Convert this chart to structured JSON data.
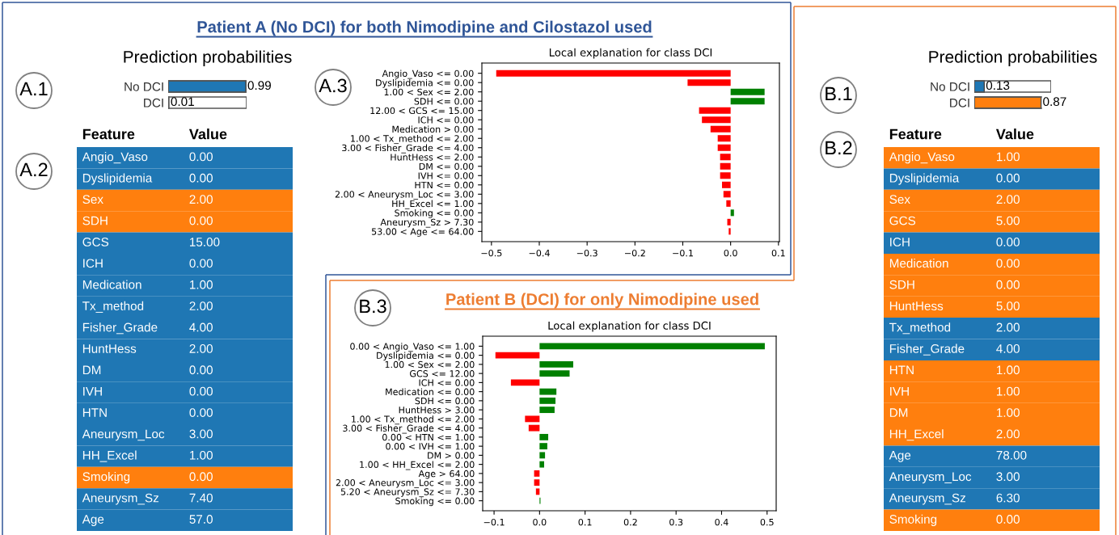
{
  "chart_data": [
    {
      "type": "bar",
      "orientation": "horizontal",
      "title": "Prediction probabilities",
      "annotations": [
        "A.1"
      ],
      "categories": [
        "No DCI",
        "DCI"
      ],
      "values": [
        0.99,
        0.01
      ],
      "colors": [
        "#1f77b4",
        "#ff7f0e"
      ],
      "xlim": [
        0,
        1
      ],
      "data_labels": true,
      "tick_labels": "y"
    },
    {
      "type": "other",
      "annotations": [
        "A.2",
        "Feature",
        "Value"
      ],
      "categories": [
        "Angio_Vaso",
        "Dyslipidemia",
        "Sex",
        "SDH",
        "GCS",
        "ICH",
        "Medication",
        "Tx_method",
        "Fisher_Grade",
        "HuntHess",
        "DM",
        "IVH",
        "HTN",
        "Aneurysm_Loc",
        "HH_Excel",
        "Smoking",
        "Aneurysm_Sz",
        "Age"
      ],
      "value_labels": [
        "0.00",
        "0.00",
        "2.00",
        "0.00",
        "15.00",
        "0.00",
        "1.00",
        "2.00",
        "4.00",
        "2.00",
        "0.00",
        "0.00",
        "0.00",
        "3.00",
        "1.00",
        "0.00",
        "7.40",
        "57.0"
      ],
      "colors": [
        "#1f77b4",
        "#1f77b4",
        "#ff7f0e",
        "#ff7f0e",
        "#1f77b4",
        "#1f77b4",
        "#1f77b4",
        "#1f77b4",
        "#1f77b4",
        "#1f77b4",
        "#1f77b4",
        "#1f77b4",
        "#1f77b4",
        "#1f77b4",
        "#1f77b4",
        "#ff7f0e",
        "#1f77b4",
        "#1f77b4"
      ]
    },
    {
      "type": "bar",
      "orientation": "horizontal",
      "title": "Local explanation for class DCI",
      "subtitle": "Patient A (No DCI) for both Nimodipine and Cilostazol used",
      "annotations": [
        "A.3"
      ],
      "categories": [
        "Angio_Vaso <= 0.00",
        "Dyslipidemia <= 0.00",
        "1.00 < Sex <= 2.00",
        "SDH <= 0.00",
        "12.00 < GCS <= 15.00",
        "ICH <= 0.00",
        "Medication > 0.00",
        "1.00 < Tx_method <= 2.00",
        "3.00 < Fisher_Grade <= 4.00",
        "HuntHess <= 2.00",
        "DM <= 0.00",
        "IVH <= 0.00",
        "HTN <= 0.00",
        "2.00 < Aneurysm_Loc <= 3.00",
        "HH_Excel <= 1.00",
        "Smoking <= 0.00",
        "Aneurysm_Sz > 7.30",
        "53.00 < Age <= 64.00"
      ],
      "values": [
        -0.49,
        -0.09,
        0.071,
        0.071,
        -0.066,
        -0.06,
        -0.042,
        -0.027,
        -0.027,
        -0.022,
        -0.022,
        -0.022,
        -0.018,
        -0.015,
        -0.009,
        0.007,
        -0.007,
        -0.004
      ],
      "colors": [
        "#ff0000",
        "#ff0000",
        "#008000",
        "#008000",
        "#ff0000",
        "#ff0000",
        "#ff0000",
        "#ff0000",
        "#ff0000",
        "#ff0000",
        "#ff0000",
        "#ff0000",
        "#ff0000",
        "#ff0000",
        "#ff0000",
        "#008000",
        "#ff0000",
        "#ff0000"
      ],
      "xlim": [
        -0.52,
        0.102
      ],
      "xticks": [
        {
          "value": -0.5,
          "label": "−0.5"
        },
        {
          "value": -0.4,
          "label": "−0.4"
        },
        {
          "value": -0.3,
          "label": "−0.3"
        },
        {
          "value": -0.2,
          "label": "−0.2"
        },
        {
          "value": -0.1,
          "label": "−0.1"
        },
        {
          "value": 0,
          "label": "0.0"
        },
        0.1
      ]
    },
    {
      "type": "bar",
      "orientation": "horizontal",
      "title": "Local explanation for class DCI",
      "subtitle": "Patient B (DCI) for only Nimodipine used",
      "annotations": [
        "B.3"
      ],
      "categories": [
        "0.00 < Angio_Vaso <= 1.00",
        "Dyslipidemia <= 0.00",
        "1.00 < Sex <= 2.00",
        "GCS <= 12.00",
        "ICH <= 0.00",
        "Medication <= 0.00",
        "SDH <= 0.00",
        "HuntHess > 3.00",
        "1.00 < Tx_method <= 2.00",
        "3.00 < Fisher_Grade <= 4.00",
        "0.00 < HTN <= 1.00",
        "0.00 < IVH <= 1.00",
        "DM > 0.00",
        "1.00 < HH_Excel <= 2.00",
        "Age > 64.00",
        "2.00 < Aneurysm_Loc <= 3.00",
        "5.20 < Aneurysm_Sz <= 7.30",
        "Smoking <= 0.00"
      ],
      "values": [
        0.495,
        -0.097,
        0.074,
        0.066,
        -0.063,
        0.037,
        0.035,
        0.033,
        -0.032,
        -0.024,
        0.019,
        0.017,
        0.012,
        0.01,
        -0.012,
        -0.012,
        -0.008,
        0.002
      ],
      "colors": [
        "#008000",
        "#ff0000",
        "#008000",
        "#008000",
        "#ff0000",
        "#008000",
        "#008000",
        "#008000",
        "#ff0000",
        "#ff0000",
        "#008000",
        "#008000",
        "#008000",
        "#008000",
        "#ff0000",
        "#ff0000",
        "#ff0000",
        "#008000"
      ],
      "xlim": [
        -0.125,
        0.52
      ],
      "xticks": [
        {
          "value": -0.1,
          "label": "−0.1"
        },
        {
          "value": 0,
          "label": "0.0"
        },
        0.1,
        0.2,
        0.3,
        0.4,
        0.5
      ]
    },
    {
      "type": "bar",
      "orientation": "horizontal",
      "title": "Prediction probabilities",
      "annotations": [
        "B.1"
      ],
      "categories": [
        "No DCI",
        "DCI"
      ],
      "values": [
        0.13,
        0.87
      ],
      "colors": [
        "#1f77b4",
        "#ff7f0e"
      ],
      "xlim": [
        0,
        1
      ],
      "data_labels": true,
      "tick_labels": "y"
    },
    {
      "type": "other",
      "annotations": [
        "B.2",
        "Feature",
        "Value"
      ],
      "categories": [
        "Angio_Vaso",
        "Dyslipidemia",
        "Sex",
        "GCS",
        "ICH",
        "Medication",
        "SDH",
        "HuntHess",
        "Tx_method",
        "Fisher_Grade",
        "HTN",
        "IVH",
        "DM",
        "HH_Excel",
        "Age",
        "Aneurysm_Loc",
        "Aneurysm_Sz",
        "Smoking"
      ],
      "value_labels": [
        "1.00",
        "0.00",
        "2.00",
        "5.00",
        "0.00",
        "0.00",
        "0.00",
        "5.00",
        "2.00",
        "4.00",
        "1.00",
        "1.00",
        "1.00",
        "2.00",
        "78.00",
        "3.00",
        "6.30",
        "0.00"
      ],
      "colors": [
        "#ff7f0e",
        "#1f77b4",
        "#ff7f0e",
        "#ff7f0e",
        "#1f77b4",
        "#ff7f0e",
        "#ff7f0e",
        "#ff7f0e",
        "#1f77b4",
        "#1f77b4",
        "#ff7f0e",
        "#ff7f0e",
        "#ff7f0e",
        "#ff7f0e",
        "#1f77b4",
        "#1f77b4",
        "#1f77b4",
        "#ff7f0e"
      ]
    }
  ]
}
